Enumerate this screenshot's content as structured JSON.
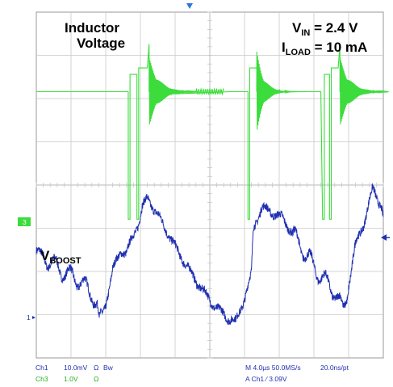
{
  "chart_data": {
    "type": "line",
    "title": "",
    "annotations": {
      "inductor_line1": "Inductor",
      "inductor_line2": "Voltage",
      "vin_main": "V",
      "vin_sub": "IN",
      "vin_value": " = 2.4 V",
      "iload_main": "I",
      "iload_sub": "LOAD",
      "iload_value": " = 10 mA",
      "vboost_main": "V",
      "vboost_sub": "BOOST"
    },
    "markers": {
      "ch3_marker": "3",
      "ch1_marker": "1"
    },
    "time_per_div_us": 4.0,
    "divisions": {
      "x": 10,
      "y": 8
    },
    "series": [
      {
        "name": "Ch3",
        "color": "#3cdc3c",
        "note": "Inductor voltage, in screen divisions (0 = ground marker)",
        "points": [
          [
            0,
            3.0
          ],
          [
            2.65,
            3.0
          ],
          [
            2.65,
            0.05
          ],
          [
            2.7,
            0.05
          ],
          [
            2.7,
            3.4
          ],
          [
            2.9,
            3.4
          ],
          [
            2.9,
            0.05
          ],
          [
            2.95,
            0.05
          ],
          [
            2.95,
            3.55
          ],
          [
            3.2,
            3.55
          ],
          [
            3.25,
            4.1
          ],
          [
            3.25,
            3.0
          ],
          [
            3.3,
            3.0
          ],
          [
            3.4,
            3.0
          ],
          [
            3.8,
            3.0
          ],
          [
            4.0,
            2.95
          ],
          [
            5.6,
            3.0
          ],
          [
            6.1,
            3.0
          ],
          [
            6.1,
            0.05
          ],
          [
            6.15,
            0.05
          ],
          [
            6.15,
            3.55
          ],
          [
            6.35,
            3.55
          ],
          [
            6.4,
            3.0
          ],
          [
            7.0,
            3.0
          ],
          [
            8.2,
            3.0
          ],
          [
            8.25,
            0.05
          ],
          [
            8.3,
            0.05
          ],
          [
            8.3,
            3.4
          ],
          [
            8.45,
            3.4
          ],
          [
            8.45,
            0.05
          ],
          [
            8.5,
            0.05
          ],
          [
            8.5,
            3.55
          ],
          [
            8.7,
            3.55
          ],
          [
            8.75,
            4.1
          ],
          [
            8.75,
            3.0
          ],
          [
            10,
            3.0
          ]
        ],
        "ringing": [
          {
            "t": 3.25,
            "amplitude": 0.8,
            "decay_div": 0.28
          },
          {
            "t": 6.35,
            "amplitude": 0.95,
            "decay_div": 0.2
          },
          {
            "t": 8.75,
            "amplitude": 0.8,
            "decay_div": 0.28
          }
        ]
      },
      {
        "name": "Ch1",
        "color": "#2030b0",
        "note": "V_BOOST ripple, in screen divisions (0 = ground marker)",
        "points": [
          [
            0,
            1.55
          ],
          [
            0.7,
            1.1
          ],
          [
            1.25,
            0.85
          ],
          [
            1.6,
            0.55
          ],
          [
            1.75,
            0.3
          ],
          [
            1.82,
            -0.15
          ],
          [
            2.0,
            0.3
          ],
          [
            2.2,
            1.1
          ],
          [
            2.45,
            1.55
          ],
          [
            2.6,
            1.5
          ],
          [
            2.95,
            2.2
          ],
          [
            3.05,
            2.55
          ],
          [
            3.2,
            2.75
          ],
          [
            3.45,
            2.45
          ],
          [
            4.1,
            1.5
          ],
          [
            4.6,
            0.85
          ],
          [
            5.1,
            0.3
          ],
          [
            5.5,
            0.0
          ],
          [
            5.75,
            -0.1
          ],
          [
            6.0,
            0.45
          ],
          [
            6.2,
            1.0
          ],
          [
            6.25,
            2.05
          ],
          [
            6.5,
            2.55
          ],
          [
            7.1,
            2.3
          ],
          [
            7.7,
            1.55
          ],
          [
            8.15,
            1.0
          ],
          [
            8.6,
            0.6
          ],
          [
            8.85,
            0.15
          ],
          [
            9.05,
            0.95
          ],
          [
            9.2,
            1.7
          ],
          [
            9.45,
            2.2
          ],
          [
            9.7,
            3.0
          ],
          [
            9.95,
            2.55
          ],
          [
            10,
            2.3
          ]
        ]
      }
    ],
    "readout": {
      "row1_ch": "Ch1",
      "row1_scale": "10.0mV",
      "row1_ohm": "Ω",
      "row1_bw": "Bw",
      "row2_ch": "Ch3",
      "row2_scale": "1.0V",
      "row2_ohm": "Ω",
      "row1_timebase": "M 4.0µs 50.0MS/s",
      "row1_res": "20.0ns/pt",
      "row2_trigger": "A  Ch1  ⁄  3.09V"
    },
    "colors": {
      "grid_frame": "#c8c8c8",
      "ch3": "#3cdc3c",
      "ch1": "#2030b0",
      "trigger_marker": "#2a7ad8",
      "text_ch1": "#2030b0",
      "text_ch3": "#20b020"
    }
  }
}
